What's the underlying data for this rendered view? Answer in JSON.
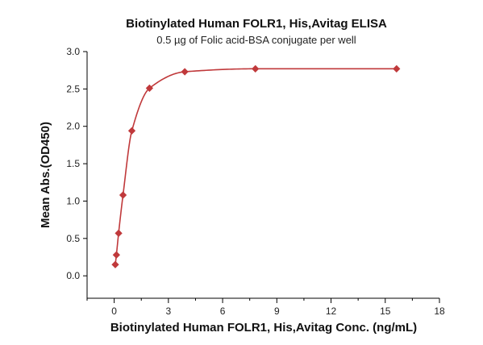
{
  "chart_data": {
    "type": "scatter",
    "title": "Biotinylated Human FOLR1, His,Avitag ELISA",
    "subtitle": "0.5 µg of Folic acid-BSA conjugate per well",
    "xlabel": "Biotinylated Human FOLR1, His,Avitag Conc. (ng/mL)",
    "ylabel": "Mean Abs.(OD450)",
    "xlim": [
      -1.5,
      18
    ],
    "ylim": [
      -0.3,
      3.0
    ],
    "xticks": [
      0,
      3,
      6,
      9,
      12,
      15,
      18
    ],
    "yticks": [
      0.0,
      0.5,
      1.0,
      1.5,
      2.0,
      2.5,
      3.0
    ],
    "xtick_labels": [
      "0",
      "3",
      "6",
      "9",
      "12",
      "15",
      "18"
    ],
    "ytick_labels": [
      "0.0",
      "0.5",
      "1.0",
      "1.5",
      "2.0",
      "2.5",
      "3.0"
    ],
    "grid": false,
    "color": "#c0393b",
    "series": [
      {
        "x": [
          0.061,
          0.122,
          0.244,
          0.488,
          0.977,
          1.953,
          3.906,
          7.813,
          15.625
        ],
        "y": [
          0.15,
          0.28,
          0.57,
          1.08,
          1.94,
          2.51,
          2.73,
          2.77,
          2.77
        ]
      }
    ]
  }
}
